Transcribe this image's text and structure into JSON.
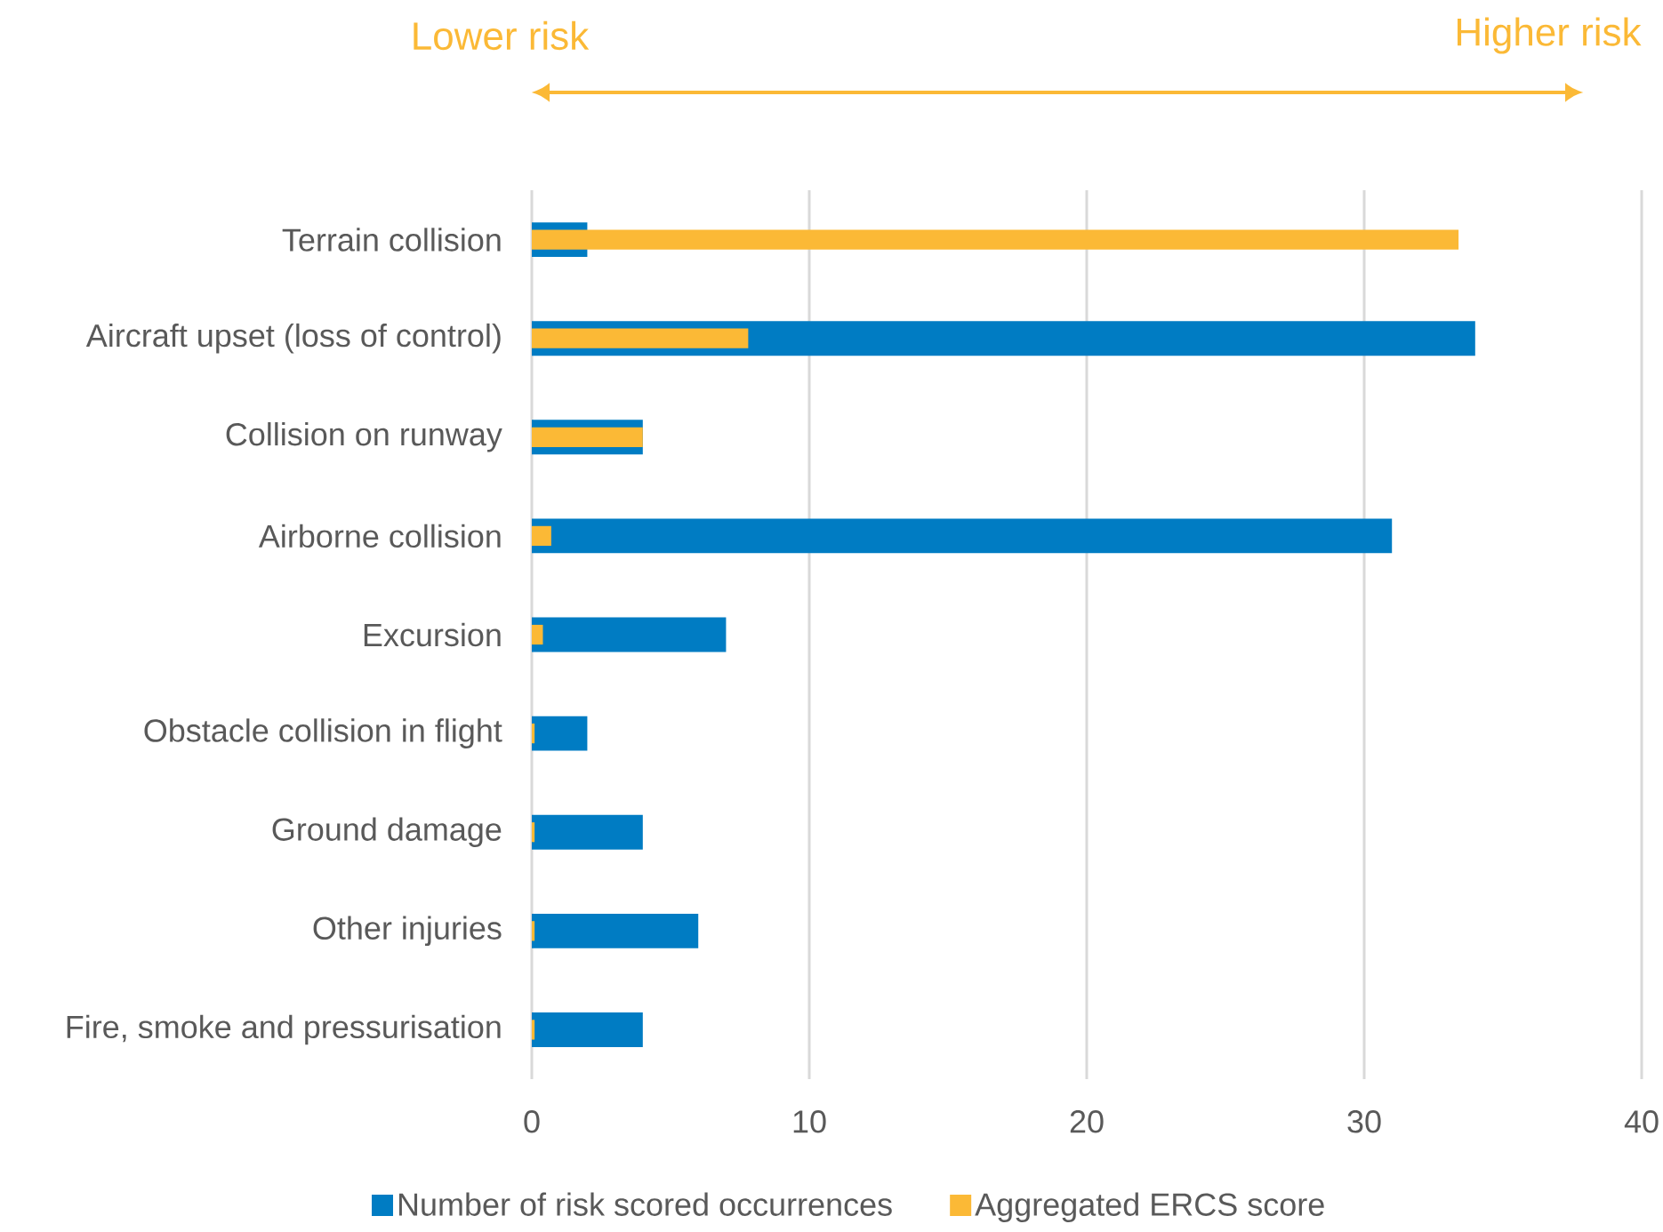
{
  "chart_data": {
    "type": "bar",
    "orientation": "horizontal",
    "categories": [
      "Terrain collision",
      "Aircraft upset (loss of control)",
      "Collision on runway",
      "Airborne collision",
      "Excursion",
      "Obstacle collision in flight",
      "Ground damage",
      "Other injuries",
      "Fire, smoke and pressurisation"
    ],
    "series": [
      {
        "name": "Number of risk scored occurrences",
        "color": "#007cc3",
        "values": [
          2,
          34,
          4,
          31,
          7,
          2,
          4,
          6,
          4
        ]
      },
      {
        "name": "Aggregated ERCS score",
        "color": "#fbb936",
        "values": [
          33.4,
          7.8,
          4,
          0.7,
          0.4,
          0.1,
          0.1,
          0.1,
          0.1
        ]
      }
    ],
    "xlim": [
      0,
      40
    ],
    "xticks": [
      0,
      10,
      20,
      30,
      40
    ],
    "grid": "x",
    "legend": "bottom",
    "annotations": [
      "Lower risk",
      "Higher risk"
    ]
  }
}
